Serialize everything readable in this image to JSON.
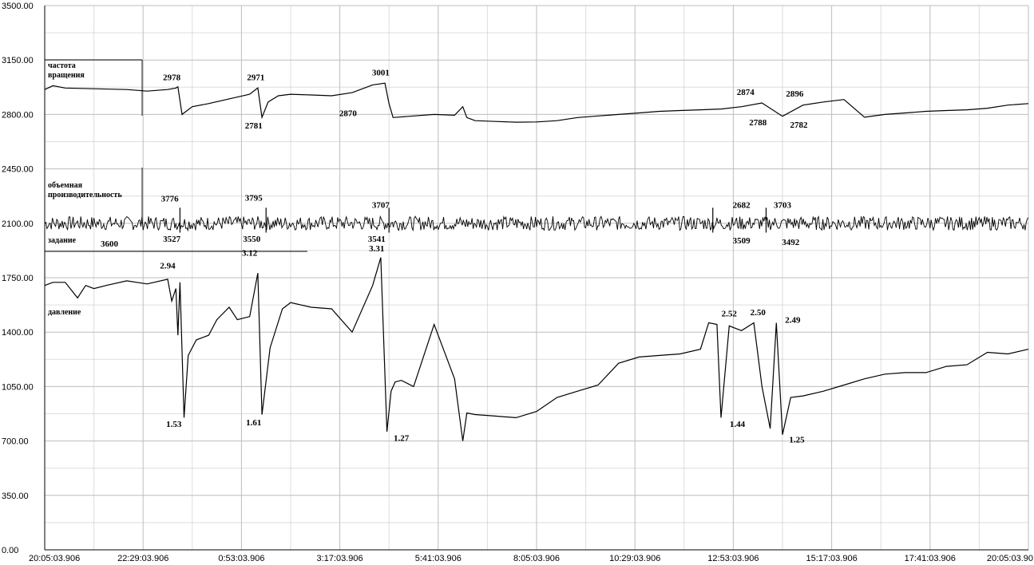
{
  "chart_data": {
    "type": "line",
    "ylim": [
      0,
      3500
    ],
    "yticks": [
      "3500.00",
      "3150.00",
      "2800.00",
      "2450.00",
      "2100.00",
      "1750.00",
      "1400.00",
      "1050.00",
      "700.00",
      "350.00",
      "0.00"
    ],
    "xticks": [
      "20:05:03.906",
      "22:29:03.906",
      "0:53:03.906",
      "3:17:03.906",
      "5:41:03.906",
      "8:05:03.906",
      "10:29:03.906",
      "12:53:03.906",
      "15:17:03.906",
      "17:41:03.906",
      "20:05:03.90"
    ],
    "grid": true,
    "series_labels": {
      "speed_1": "частота",
      "speed_2": "вращения",
      "flow_1": "объемная",
      "flow_2": "производительность",
      "setpoint": "задание",
      "pressure": "давление"
    },
    "setpoint_value": "3600",
    "series": [
      {
        "key": "speed",
        "x_hours": [
          0,
          0.2,
          0.5,
          1.2,
          2,
          2.5,
          3,
          3.2,
          3.25,
          3.35,
          3.6,
          4,
          4.5,
          5,
          5.2,
          5.3,
          5.45,
          5.7,
          6,
          6.5,
          7,
          7.5,
          8,
          8.3,
          8.4,
          8.5,
          9,
          9.5,
          10,
          10.2,
          10.3,
          10.5,
          11,
          11.5,
          12,
          12.5,
          13,
          13.5,
          14,
          14.5,
          15,
          15.5,
          16,
          16.5,
          17,
          17.5,
          18,
          18.5,
          19,
          19.5,
          20,
          20.5,
          21,
          21.5,
          22,
          22.5,
          23,
          23.5,
          24
        ],
        "values": [
          2960,
          2985,
          2970,
          2965,
          2960,
          2950,
          2960,
          2970,
          2978,
          2800,
          2850,
          2870,
          2900,
          2930,
          2971,
          2781,
          2880,
          2920,
          2930,
          2925,
          2920,
          2940,
          2990,
          3001,
          2870,
          2780,
          2790,
          2800,
          2795,
          2850,
          2780,
          2760,
          2755,
          2750,
          2752,
          2760,
          2780,
          2790,
          2800,
          2810,
          2820,
          2825,
          2830,
          2835,
          2850,
          2874,
          2788,
          2860,
          2880,
          2896,
          2782,
          2800,
          2810,
          2820,
          2825,
          2830,
          2840,
          2860,
          2870
        ]
      },
      {
        "key": "flow",
        "x_hours": [
          0,
          3,
          3.3,
          4.5,
          5.1,
          5.4,
          8.4,
          9.9,
          16,
          16.3,
          17.6,
          17.9,
          24
        ],
        "values": [
          2100,
          2100,
          3776,
          2100,
          2100,
          3795,
          3707,
          2100,
          2100,
          2682,
          3703,
          2100,
          2100
        ]
      },
      {
        "key": "pressure",
        "x_hours": [
          0,
          0.2,
          0.5,
          0.8,
          1,
          1.2,
          1.5,
          2,
          2.5,
          3,
          3.1,
          3.2,
          3.25,
          3.3,
          3.4,
          3.5,
          3.7,
          4,
          4.2,
          4.5,
          4.7,
          5,
          5.2,
          5.3,
          5.5,
          5.8,
          6,
          6.5,
          7,
          7.5,
          8,
          8.2,
          8.35,
          8.45,
          8.55,
          8.7,
          9,
          9.5,
          10,
          10.2,
          10.3,
          10.5,
          11,
          11.5,
          12,
          12.5,
          13,
          13.5,
          14,
          14.5,
          15,
          15.5,
          16,
          16.2,
          16.4,
          16.5,
          16.7,
          17,
          17.3,
          17.5,
          17.7,
          17.85,
          18,
          18.2,
          18.5,
          19,
          19.5,
          20,
          20.5,
          21,
          21.5,
          22,
          22.5,
          23,
          23.5,
          24
        ],
        "values": [
          1700,
          1720,
          1720,
          1620,
          1700,
          1680,
          1700,
          1730,
          1710,
          1740,
          1600,
          1680,
          1380,
          1720,
          850,
          1250,
          1350,
          1380,
          1480,
          1560,
          1480,
          1500,
          1780,
          870,
          1300,
          1550,
          1590,
          1560,
          1550,
          1400,
          1700,
          1880,
          760,
          1020,
          1080,
          1090,
          1050,
          1450,
          1100,
          700,
          880,
          870,
          860,
          850,
          890,
          980,
          1020,
          1060,
          1200,
          1240,
          1250,
          1260,
          1290,
          1460,
          1450,
          850,
          1440,
          1410,
          1460,
          1050,
          780,
          1460,
          740,
          980,
          990,
          1020,
          1060,
          1100,
          1130,
          1140,
          1140,
          1180,
          1190,
          1270,
          1260,
          1290
        ]
      }
    ],
    "annotations": [
      {
        "text": "2978",
        "x": 3.1,
        "y": 3020
      },
      {
        "text": "2971",
        "x": 5.15,
        "y": 3020
      },
      {
        "text": "3001",
        "x": 8.2,
        "y": 3050
      },
      {
        "text": "2781",
        "x": 5.1,
        "y": 2710
      },
      {
        "text": "2870",
        "x": 7.4,
        "y": 2790
      },
      {
        "text": "2874",
        "x": 17.1,
        "y": 2925
      },
      {
        "text": "2896",
        "x": 18.3,
        "y": 2915
      },
      {
        "text": "2788",
        "x": 17.4,
        "y": 2730
      },
      {
        "text": "2782",
        "x": 18.4,
        "y": 2715
      },
      {
        "text": "3776",
        "x": 3.05,
        "y": 2240
      },
      {
        "text": "3795",
        "x": 5.1,
        "y": 2245
      },
      {
        "text": "3707",
        "x": 8.2,
        "y": 2200
      },
      {
        "text": "2682",
        "x": 17.0,
        "y": 2200
      },
      {
        "text": "3703",
        "x": 18.0,
        "y": 2200
      },
      {
        "text": "3527",
        "x": 3.1,
        "y": 1980
      },
      {
        "text": "3550",
        "x": 5.05,
        "y": 1980
      },
      {
        "text": "3541",
        "x": 8.1,
        "y": 1980
      },
      {
        "text": "3509",
        "x": 17.0,
        "y": 1970
      },
      {
        "text": "3492",
        "x": 18.2,
        "y": 1960
      },
      {
        "text": "3.31",
        "x": 8.1,
        "y": 1920
      },
      {
        "text": "2.94",
        "x": 3.0,
        "y": 1810
      },
      {
        "text": "3.12",
        "x": 5.0,
        "y": 1890
      },
      {
        "text": "1.53",
        "x": 3.15,
        "y": 790
      },
      {
        "text": "1.61",
        "x": 5.1,
        "y": 800
      },
      {
        "text": "1.27",
        "x": 8.7,
        "y": 700
      },
      {
        "text": "2.52",
        "x": 16.7,
        "y": 1500
      },
      {
        "text": "2.50",
        "x": 17.4,
        "y": 1510
      },
      {
        "text": "2.49",
        "x": 18.25,
        "y": 1460
      },
      {
        "text": "1.44",
        "x": 16.9,
        "y": 790
      },
      {
        "text": "1.25",
        "x": 18.35,
        "y": 690
      }
    ]
  }
}
